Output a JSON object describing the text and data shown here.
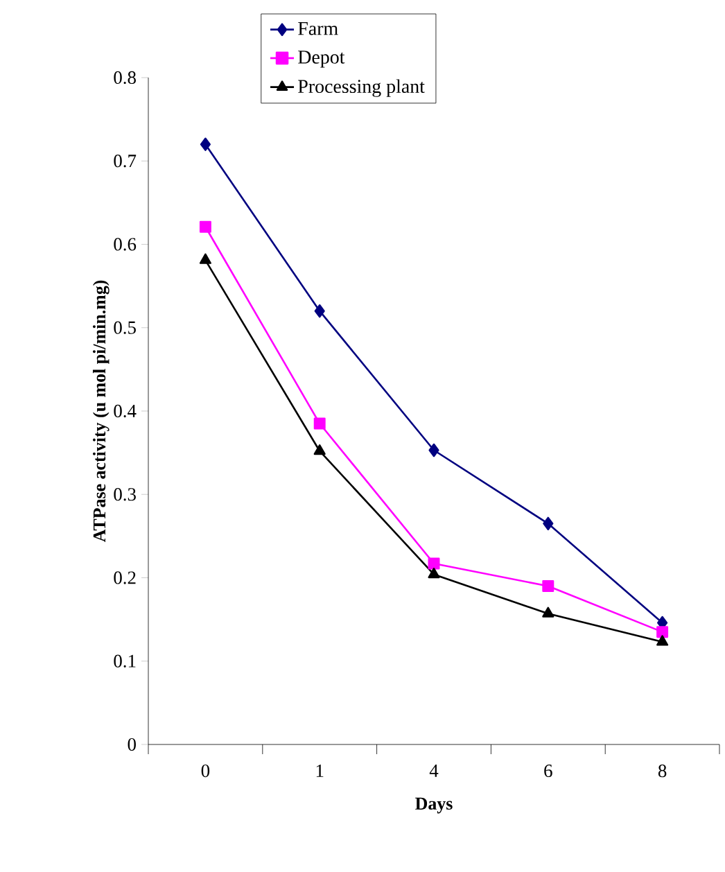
{
  "chart_data": {
    "type": "line",
    "xlabel": "Days",
    "ylabel": "ATPase activity (u mol pi/min.mg)",
    "categories": [
      "0",
      "1",
      "4",
      "6",
      "8"
    ],
    "ylim": [
      0,
      0.8
    ],
    "yticks": [
      0,
      0.1,
      0.2,
      0.3,
      0.4,
      0.5,
      0.6,
      0.7,
      0.8
    ],
    "grid": false,
    "legend": "top",
    "series": [
      {
        "name": "Farm",
        "color": "#000080",
        "marker": "diamond",
        "values": [
          0.72,
          0.52,
          0.353,
          0.265,
          0.146
        ]
      },
      {
        "name": "Depot",
        "color": "#ff00ff",
        "marker": "square",
        "values": [
          0.621,
          0.385,
          0.217,
          0.19,
          0.135
        ]
      },
      {
        "name": "Processing plant",
        "color": "#000000",
        "marker": "triangle",
        "values": [
          0.581,
          0.352,
          0.204,
          0.157,
          0.123
        ]
      }
    ]
  }
}
